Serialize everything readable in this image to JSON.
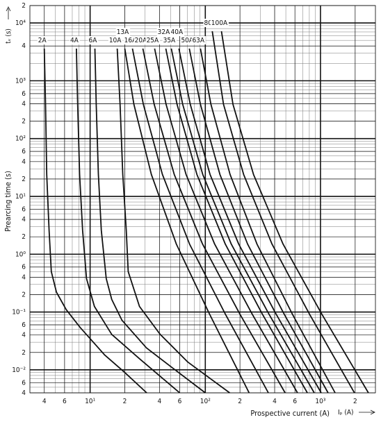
{
  "chart_data": {
    "type": "line",
    "x_label": "Prospective current (A)",
    "x_unit": "Iₚ (A)",
    "y_label": "Prearcing time (s)",
    "y_unit": "tᵥ (s)",
    "log_x": true,
    "log_y": true,
    "grid": true,
    "xlim": [
      3,
      3000
    ],
    "ylim": [
      0.004,
      20000
    ],
    "xticks": [
      4,
      6,
      {
        "value": 10,
        "label": "10¹"
      },
      {
        "value": 20,
        "label": "2"
      },
      {
        "value": 40,
        "label": "4"
      },
      {
        "value": 60,
        "label": "6"
      },
      {
        "value": 100,
        "label": "10²"
      },
      {
        "value": 200,
        "label": "2"
      },
      {
        "value": 400,
        "label": "4"
      },
      {
        "value": 600,
        "label": "6"
      },
      {
        "value": 1000,
        "label": "10³"
      },
      {
        "value": 2000,
        "label": "2"
      }
    ],
    "yticks": [
      {
        "value": 20000,
        "label": "2"
      },
      {
        "value": 10000,
        "label": "10⁴"
      },
      {
        "value": 4000,
        "label": "4"
      },
      {
        "value": 1000,
        "label": "10³"
      },
      {
        "value": 600,
        "label": "6"
      },
      {
        "value": 400,
        "label": "4"
      },
      {
        "value": 200,
        "label": "2"
      },
      {
        "value": 100,
        "label": "10²"
      },
      {
        "value": 60,
        "label": "6"
      },
      {
        "value": 40,
        "label": "4"
      },
      {
        "value": 20,
        "label": "2"
      },
      {
        "value": 10,
        "label": "10¹"
      },
      6,
      4,
      2,
      {
        "value": 1,
        "label": "10⁰"
      },
      {
        "value": 0.6,
        "label": "6"
      },
      {
        "value": 0.4,
        "label": "4"
      },
      {
        "value": 0.2,
        "label": "2"
      },
      {
        "value": 0.1,
        "label": "10⁻¹"
      },
      {
        "value": 0.06,
        "label": "6"
      },
      {
        "value": 0.04,
        "label": "4"
      },
      {
        "value": 0.02,
        "label": "2"
      },
      {
        "value": 0.01,
        "label": "10⁻²"
      },
      {
        "value": 0.006,
        "label": "6"
      },
      {
        "value": 0.004,
        "label": "4"
      }
    ],
    "series": [
      {
        "name": "2A",
        "color": "#111111",
        "x": [
          4,
          4.1,
          4.2,
          4.4,
          4.6,
          5.1,
          6.2,
          8.2,
          13.4,
          20,
          31
        ],
        "values": [
          3600,
          390,
          24,
          2.6,
          0.5,
          0.22,
          0.11,
          0.054,
          0.018,
          0.009,
          0.004
        ]
      },
      {
        "name": "4A",
        "color": "#111111",
        "x": [
          7.6,
          7.8,
          8.1,
          8.6,
          9.3,
          10.9,
          15.4,
          26.8,
          60
        ],
        "values": [
          3600,
          390,
          24,
          2.6,
          0.38,
          0.125,
          0.041,
          0.0156,
          0.004
        ]
      },
      {
        "name": "6A",
        "color": "#111111",
        "x": [
          11,
          11.3,
          11.8,
          12.5,
          13.8,
          15.4,
          18.9,
          30.8,
          53.6,
          100
        ],
        "values": [
          3600,
          390,
          24,
          2.6,
          0.38,
          0.165,
          0.072,
          0.024,
          0.0103,
          0.004
        ]
      },
      {
        "name": "10A",
        "color": "#111111",
        "x": [
          17.2,
          18.2,
          19.2,
          20.6,
          21.4,
          26.8,
          40.6,
          70.6,
          163
        ],
        "values": [
          3600,
          390,
          24,
          2.6,
          0.5,
          0.125,
          0.041,
          0.0136,
          0.004
        ]
      },
      {
        "name": "13A",
        "color": "#111111",
        "x": [
          20,
          24,
          34,
          56,
          108,
          240
        ],
        "values": [
          3600,
          390,
          24,
          1.5,
          0.095,
          0.004
        ]
      },
      {
        "name": "16A",
        "color": "#111111",
        "x": [
          23.3,
          29,
          42.4,
          73,
          148,
          353
        ],
        "values": [
          3600,
          390,
          24,
          1.5,
          0.095,
          0.004
        ]
      },
      {
        "name": "20A",
        "color": "#111111",
        "x": [
          28.7,
          36,
          53.7,
          94.6,
          198,
          493
        ],
        "values": [
          3600,
          390,
          24,
          1.5,
          0.095,
          0.004
        ]
      },
      {
        "name": "25A",
        "color": "#111111",
        "x": [
          36.3,
          45.7,
          68.1,
          120.5,
          253,
          632
        ],
        "values": [
          3600,
          390,
          24,
          1.5,
          0.095,
          0.004
        ]
      },
      {
        "name": "32A",
        "color": "#111111",
        "x": [
          45.4,
          56.9,
          84.5,
          149,
          310,
          769
        ],
        "values": [
          3600,
          390,
          24,
          1.5,
          0.095,
          0.004
        ]
      },
      {
        "name": "35A",
        "color": "#111111",
        "x": [
          50.7,
          63.7,
          95,
          168,
          354,
          883
        ],
        "values": [
          3600,
          390,
          24,
          1.5,
          0.095,
          0.004
        ]
      },
      {
        "name": "40A",
        "color": "#111111",
        "x": [
          59,
          74.1,
          110,
          195,
          408,
          1014
        ],
        "values": [
          3600,
          390,
          24,
          1.5,
          0.095,
          0.004
        ]
      },
      {
        "name": "50A",
        "color": "#111111",
        "x": [
          72.6,
          90.7,
          134,
          233,
          480,
          1165
        ],
        "values": [
          3600,
          390,
          24,
          1.5,
          0.095,
          0.004
        ]
      },
      {
        "name": "63A",
        "color": "#111111",
        "x": [
          90.7,
          112,
          164,
          281,
          565,
          1339
        ],
        "values": [
          3600,
          390,
          24,
          1.5,
          0.095,
          0.004
        ]
      },
      {
        "name": "80A",
        "color": "#111111",
        "x": [
          115,
          144,
          215,
          379,
          795,
          1973
        ],
        "values": [
          7200,
          390,
          24,
          1.5,
          0.095,
          0.004
        ]
      },
      {
        "name": "100A",
        "color": "#111111",
        "x": [
          138,
          174,
          262,
          473,
          1017,
          2606
        ],
        "values": [
          7200,
          390,
          24,
          1.5,
          0.095,
          0.004
        ]
      }
    ]
  }
}
